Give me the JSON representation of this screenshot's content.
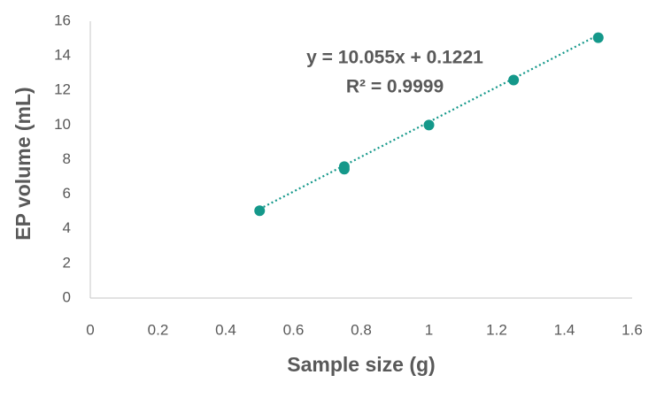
{
  "chart_data": {
    "type": "scatter",
    "xlabel": "Sample size (g)",
    "ylabel": "EP volume (mL)",
    "series": [
      {
        "name": "EP volume",
        "color": "#14988a",
        "x": [
          0.5,
          0.75,
          0.75,
          1.0,
          1.25,
          1.5
        ],
        "values": [
          5.05,
          7.45,
          7.6,
          10.0,
          12.6,
          15.05
        ]
      }
    ],
    "trendline": {
      "slope": 10.055,
      "intercept": 0.1221,
      "equation": "y = 10.055x + 0.1221",
      "r2": "R² = 0.9999"
    },
    "xlim": [
      0,
      1.6
    ],
    "xticks": [
      0,
      0.2,
      0.4,
      0.6,
      0.8,
      1,
      1.2,
      1.4,
      1.6
    ],
    "ylim": [
      0,
      16
    ],
    "yticks": [
      0,
      2,
      4,
      6,
      8,
      10,
      12,
      14,
      16
    ]
  }
}
